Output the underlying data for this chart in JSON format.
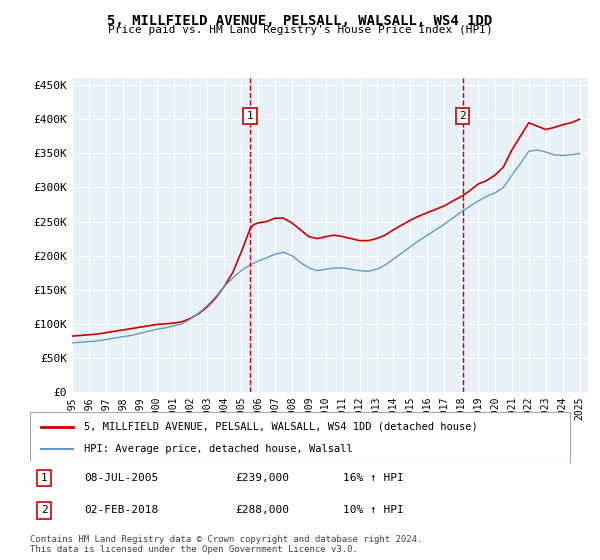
{
  "title": "5, MILLFIELD AVENUE, PELSALL, WALSALL, WS4 1DD",
  "subtitle": "Price paid vs. HM Land Registry's House Price Index (HPI)",
  "legend_label_red": "5, MILLFIELD AVENUE, PELSALL, WALSALL, WS4 1DD (detached house)",
  "legend_label_blue": "HPI: Average price, detached house, Walsall",
  "ylabel": "",
  "ylim": [
    0,
    460000
  ],
  "yticks": [
    0,
    50000,
    100000,
    150000,
    200000,
    250000,
    300000,
    350000,
    400000,
    450000
  ],
  "ytick_labels": [
    "£0",
    "£50K",
    "£100K",
    "£150K",
    "£200K",
    "£250K",
    "£300K",
    "£350K",
    "£400K",
    "£450K"
  ],
  "xlim_start": 1995.0,
  "xlim_end": 2025.5,
  "background_color": "#e8f0f8",
  "plot_bg_color": "#e8f0f8",
  "grid_color": "#ffffff",
  "annotations": [
    {
      "num": 1,
      "date": "08-JUL-2005",
      "price": "£239,000",
      "hpi": "16% ↑ HPI",
      "x": 2005.52
    },
    {
      "num": 2,
      "date": "02-FEB-2018",
      "price": "£288,000",
      "hpi": "10% ↑ HPI",
      "x": 2018.09
    }
  ],
  "footer": "Contains HM Land Registry data © Crown copyright and database right 2024.\nThis data is licensed under the Open Government Licence v3.0.",
  "red_line_data": {
    "x": [
      1995.0,
      1995.5,
      1996.0,
      1996.5,
      1997.0,
      1997.5,
      1998.0,
      1998.5,
      1999.0,
      1999.5,
      2000.0,
      2000.5,
      2001.0,
      2001.5,
      2002.0,
      2002.5,
      2003.0,
      2003.5,
      2004.0,
      2004.5,
      2005.0,
      2005.52,
      2005.7,
      2006.0,
      2006.5,
      2007.0,
      2007.5,
      2008.0,
      2008.5,
      2009.0,
      2009.5,
      2010.0,
      2010.5,
      2011.0,
      2011.5,
      2012.0,
      2012.5,
      2013.0,
      2013.5,
      2014.0,
      2014.5,
      2015.0,
      2015.5,
      2016.0,
      2016.5,
      2017.0,
      2017.5,
      2018.09,
      2018.5,
      2019.0,
      2019.5,
      2020.0,
      2020.5,
      2021.0,
      2021.5,
      2022.0,
      2022.5,
      2023.0,
      2023.5,
      2024.0,
      2024.5,
      2025.0
    ],
    "y": [
      82000,
      83000,
      84000,
      85000,
      87000,
      89000,
      91000,
      93000,
      95000,
      97000,
      99000,
      100000,
      101000,
      103000,
      108000,
      115000,
      125000,
      138000,
      155000,
      175000,
      205000,
      239000,
      245000,
      248000,
      250000,
      255000,
      255000,
      248000,
      238000,
      228000,
      225000,
      228000,
      230000,
      228000,
      225000,
      222000,
      222000,
      225000,
      230000,
      238000,
      245000,
      252000,
      258000,
      263000,
      268000,
      273000,
      280000,
      288000,
      295000,
      305000,
      310000,
      318000,
      330000,
      355000,
      375000,
      395000,
      390000,
      385000,
      388000,
      392000,
      395000,
      400000
    ]
  },
  "blue_line_data": {
    "x": [
      1995.0,
      1995.5,
      1996.0,
      1996.5,
      1997.0,
      1997.5,
      1998.0,
      1998.5,
      1999.0,
      1999.5,
      2000.0,
      2000.5,
      2001.0,
      2001.5,
      2002.0,
      2002.5,
      2003.0,
      2003.5,
      2004.0,
      2004.5,
      2005.0,
      2005.5,
      2006.0,
      2006.5,
      2007.0,
      2007.5,
      2008.0,
      2008.5,
      2009.0,
      2009.5,
      2010.0,
      2010.5,
      2011.0,
      2011.5,
      2012.0,
      2012.5,
      2013.0,
      2013.5,
      2014.0,
      2014.5,
      2015.0,
      2015.5,
      2016.0,
      2016.5,
      2017.0,
      2017.5,
      2018.0,
      2018.5,
      2019.0,
      2019.5,
      2020.0,
      2020.5,
      2021.0,
      2021.5,
      2022.0,
      2022.5,
      2023.0,
      2023.5,
      2024.0,
      2024.5,
      2025.0
    ],
    "y": [
      72000,
      73000,
      74000,
      75000,
      77000,
      79000,
      81000,
      83000,
      86000,
      89000,
      92000,
      94000,
      97000,
      100000,
      107000,
      116000,
      127000,
      140000,
      155000,
      167000,
      178000,
      186000,
      192000,
      197000,
      202000,
      205000,
      200000,
      190000,
      182000,
      178000,
      180000,
      182000,
      182000,
      180000,
      178000,
      177000,
      180000,
      186000,
      195000,
      204000,
      213000,
      222000,
      230000,
      238000,
      246000,
      255000,
      264000,
      272000,
      280000,
      287000,
      292000,
      300000,
      318000,
      335000,
      353000,
      355000,
      352000,
      348000,
      347000,
      348000,
      350000
    ]
  }
}
